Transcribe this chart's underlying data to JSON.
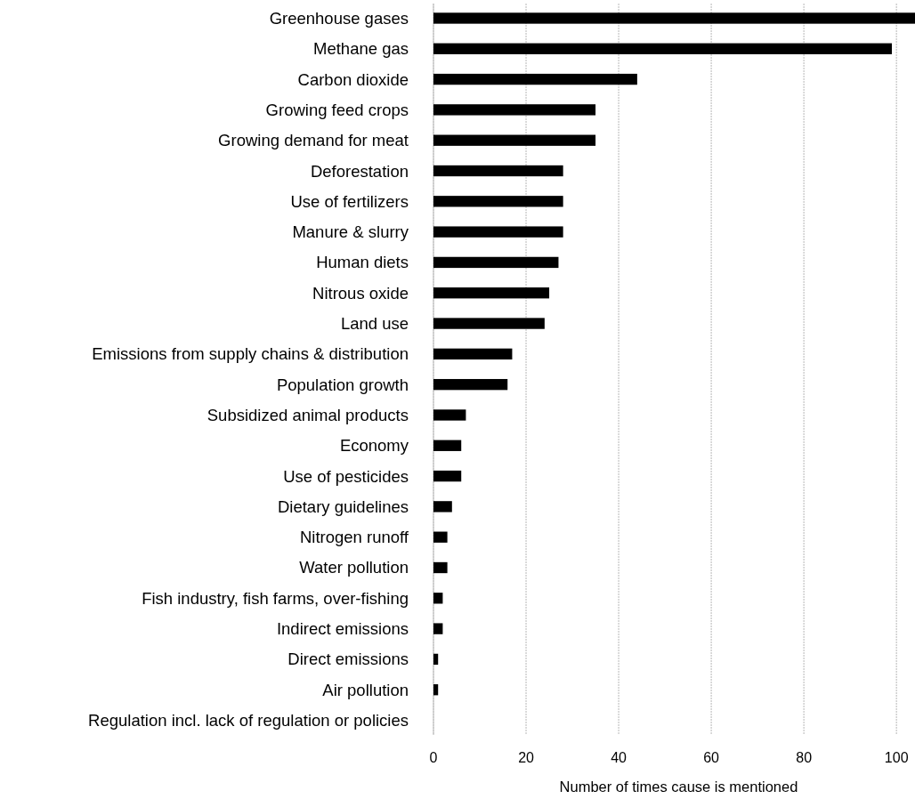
{
  "chart_data": {
    "type": "bar",
    "orientation": "horizontal",
    "xlabel": "Number of times cause is mentioned",
    "categories": [
      "Greenhouse gases",
      "Methane gas",
      "Carbon dioxide",
      "Growing feed crops",
      "Growing demand for meat",
      "Deforestation",
      "Use of fertilizers",
      "Manure & slurry",
      "Human diets",
      "Nitrous oxide",
      "Land use",
      "Emissions from supply chains & distribution",
      "Population growth",
      "Subsidized animal products",
      "Economy",
      "Use of pesticides",
      "Dietary guidelines",
      "Nitrogen runoff",
      "Water pollution",
      "Fish industry, fish farms, over-fishing",
      "Indirect emissions",
      "Direct emissions",
      "Air pollution",
      "Regulation incl. lack of regulation or policies"
    ],
    "values": [
      104,
      99,
      44,
      35,
      35,
      28,
      28,
      28,
      27,
      25,
      24,
      17,
      16,
      7,
      6,
      6,
      4,
      3,
      3,
      2,
      2,
      1,
      1,
      0
    ],
    "color": "#000000",
    "xlim": [
      0,
      104
    ],
    "xticks": [
      0,
      20,
      40,
      60,
      80,
      100
    ],
    "grid": "x"
  }
}
